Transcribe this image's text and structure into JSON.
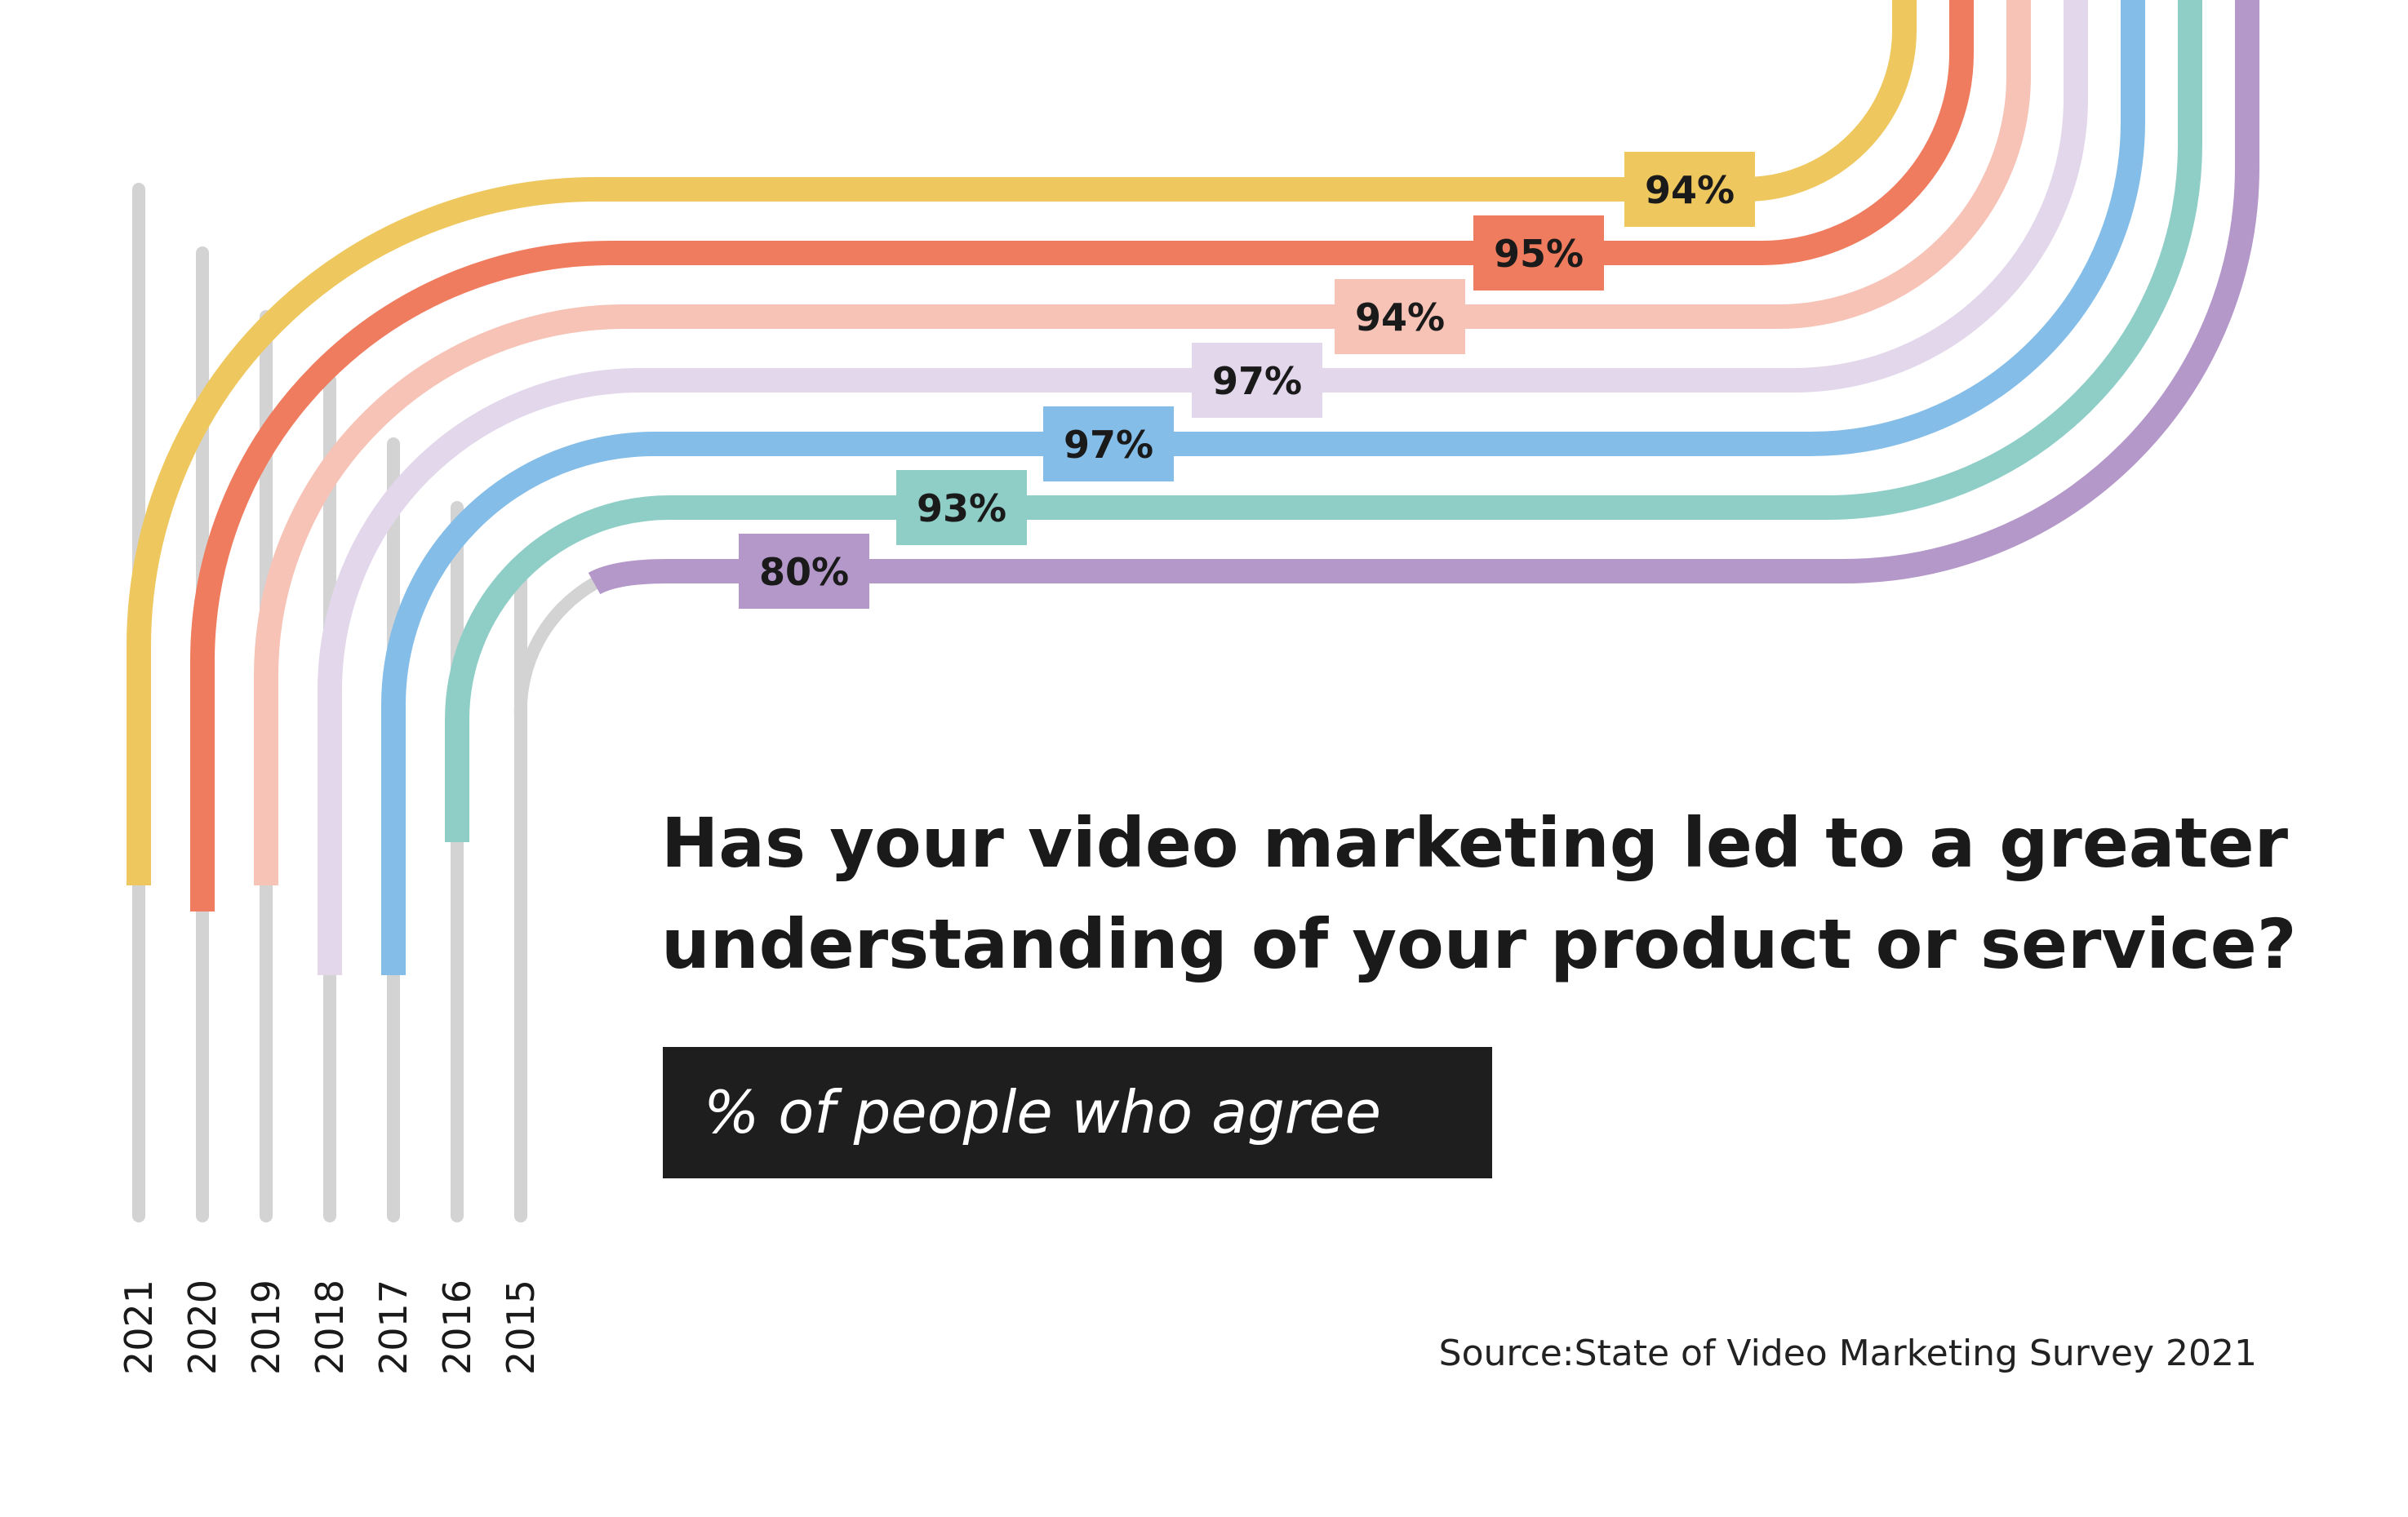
{
  "chart_data": {
    "type": "line",
    "title": "Has your video marketing led to a greater understanding of your product or service?",
    "title_lines": [
      "Has your video marketing led to a greater",
      "understanding of your product or service?"
    ],
    "subtitle": "% of people who agree",
    "source": "Source:State of Video Marketing Survey 2021",
    "categories": [
      "2021",
      "2020",
      "2019",
      "2018",
      "2017",
      "2016",
      "2015"
    ],
    "series": [
      {
        "year": "2021",
        "value": 94,
        "label": "94%",
        "color": "#EEC75E"
      },
      {
        "year": "2020",
        "value": 95,
        "label": "95%",
        "color": "#EF7C5E"
      },
      {
        "year": "2019",
        "value": 94,
        "label": "94%",
        "color": "#F6C3B6"
      },
      {
        "year": "2018",
        "value": 97,
        "label": "97%",
        "color": "#E3D7EC"
      },
      {
        "year": "2017",
        "value": 97,
        "label": "97%",
        "color": "#84BDE8"
      },
      {
        "year": "2016",
        "value": 93,
        "label": "93%",
        "color": "#8FCEC7"
      },
      {
        "year": "2015",
        "value": 80,
        "label": "80%",
        "color": "#B498C9"
      }
    ],
    "ylim": [
      0,
      100
    ],
    "grid": false,
    "legend": "none"
  },
  "colors": {
    "stem": "#D3D3D3",
    "pill_background": "#1E1E1E",
    "text": "#1a1a1a"
  }
}
